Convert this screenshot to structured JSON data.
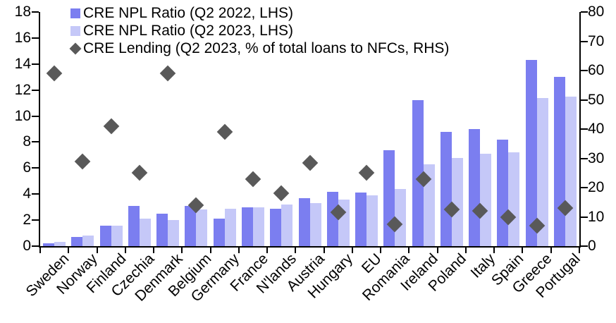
{
  "chart_data": {
    "type": "bar",
    "subtype": "grouped bars with diamond scatter overlay on secondary axis",
    "categories": [
      "Sweden",
      "Norway",
      "Finland",
      "Czechia",
      "Denmark",
      "Belgium",
      "Germany",
      "France",
      "N'lands",
      "Austria",
      "Hungary",
      "EU",
      "Romania",
      "Ireland",
      "Poland",
      "Italy",
      "Spain",
      "Greece",
      "Portugal"
    ],
    "series": [
      {
        "name": "CRE NPL Ratio (Q2 2022, LHS)",
        "type": "bar",
        "axis": "left",
        "color": "#7b7ef0",
        "values": [
          0.2,
          0.7,
          1.6,
          3.1,
          2.5,
          3.1,
          2.1,
          3.0,
          2.9,
          3.7,
          4.2,
          4.1,
          7.4,
          11.2,
          8.8,
          9.0,
          8.2,
          14.3,
          13.0
        ]
      },
      {
        "name": "CRE NPL Ratio (Q2 2023, LHS)",
        "type": "bar",
        "axis": "left",
        "color": "#c5c8f8",
        "values": [
          0.3,
          0.8,
          1.6,
          2.1,
          2.0,
          2.8,
          2.9,
          3.0,
          3.2,
          3.3,
          3.6,
          3.9,
          4.4,
          6.3,
          6.8,
          7.1,
          7.2,
          11.4,
          11.5
        ]
      },
      {
        "name": "CRE Lending (Q2 2023, % of total loans to NFCs, RHS)",
        "type": "scatter",
        "marker": "diamond",
        "axis": "right",
        "color": "#595959",
        "values": [
          59,
          29,
          41,
          25,
          59,
          14,
          39,
          23,
          18,
          28.5,
          11.5,
          25,
          7.5,
          23,
          12.5,
          12,
          10,
          7,
          13
        ]
      }
    ],
    "left_axis": {
      "min": 0,
      "max": 18,
      "step": 2,
      "ticks": [
        0,
        2,
        4,
        6,
        8,
        10,
        12,
        14,
        16,
        18
      ]
    },
    "right_axis": {
      "min": 0,
      "max": 80,
      "step": 10,
      "ticks": [
        0,
        10,
        20,
        30,
        40,
        50,
        60,
        70,
        80
      ]
    },
    "legend_position": "top-left-inside",
    "grid": false,
    "title": "",
    "xlabel": "",
    "ylabel": ""
  },
  "colors": {
    "bar_2022": "#7b7ef0",
    "bar_2023": "#c5c8f8",
    "diamond": "#595959",
    "axis": "#000000",
    "background": "#ffffff"
  }
}
